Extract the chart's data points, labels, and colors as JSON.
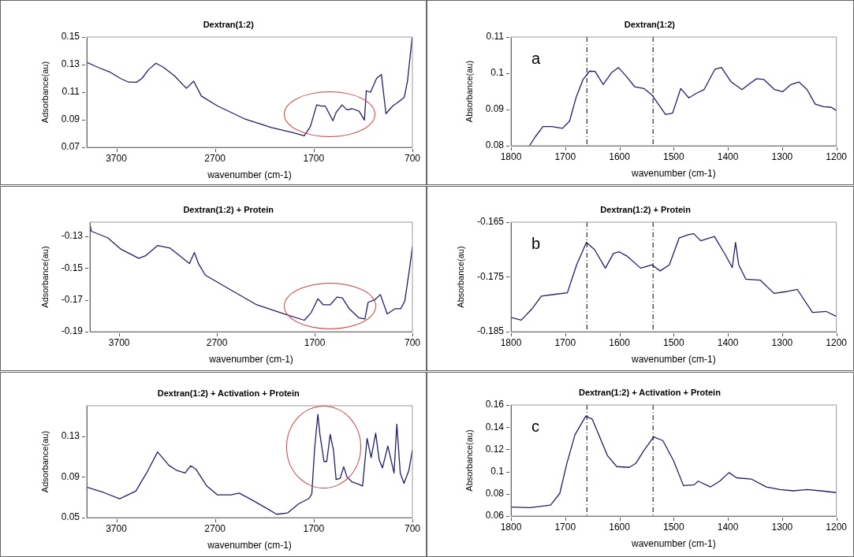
{
  "chart_data": [
    {
      "type": "line",
      "title": "Dextran(1:2)",
      "xlabel": "wavenumber (cm-1)",
      "ylabel": "Adsorbance(au)",
      "xlim": [
        4000,
        700
      ],
      "xticks": [
        3700,
        2700,
        1700,
        700
      ],
      "ylim": [
        0.07,
        0.15
      ],
      "yticks": [
        0.07,
        0.09,
        0.11,
        0.13,
        0.15
      ],
      "series": [
        {
          "color": "#1f1f6e",
          "x": [
            4000,
            3885,
            3768,
            3659,
            3577,
            3495,
            3440,
            3372,
            3298,
            3222,
            3113,
            2990,
            2916,
            2839,
            2675,
            2402,
            2129,
            1910,
            1796,
            1733,
            1670,
            1623,
            1582,
            1506,
            1473,
            1413,
            1364,
            1309,
            1240,
            1186,
            1167,
            1124,
            1063,
            1014,
            968,
            899,
            845,
            782,
            749,
            703
          ],
          "values": [
            0.1317,
            0.128,
            0.1247,
            0.12,
            0.1173,
            0.1172,
            0.12,
            0.1265,
            0.131,
            0.128,
            0.122,
            0.1128,
            0.118,
            0.1072,
            0.1,
            0.0907,
            0.0843,
            0.0806,
            0.0783,
            0.0852,
            0.1008,
            0.0999,
            0.0999,
            0.0893,
            0.0953,
            0.1008,
            0.0972,
            0.098,
            0.0962,
            0.0898,
            0.111,
            0.11,
            0.12,
            0.1228,
            0.0944,
            0.1,
            0.1027,
            0.1063,
            0.1183,
            0.1495
          ]
        }
      ]
    },
    {
      "type": "line",
      "title": "Dextran(1:2)",
      "xlabel": "wavenumber (cm-1)",
      "ylabel": "Absorbance(au)",
      "xlim": [
        1800,
        1200
      ],
      "xticks": [
        1800,
        1700,
        1600,
        1500,
        1400,
        1300,
        1200
      ],
      "ylim": [
        0.08,
        0.11
      ],
      "yticks": [
        0.08,
        0.09,
        {
          "value": 0.1,
          "label": "0.1"
        },
        0.11
      ],
      "annotations": [
        "a"
      ],
      "ref_lines": [
        {
          "axis": "x",
          "value": 1660,
          "color": "#000000",
          "line_style": "dashed"
        },
        {
          "axis": "x",
          "value": 1538,
          "color": "#000000",
          "line_style": "dashed"
        }
      ],
      "series": [
        {
          "color": "#1f1f6e",
          "x": [
            1766,
            1755,
            1741,
            1725,
            1705,
            1692,
            1680,
            1667,
            1655,
            1645,
            1630,
            1615,
            1602,
            1587,
            1572,
            1555,
            1540,
            1525,
            1515,
            1502,
            1487,
            1472,
            1459,
            1444,
            1424,
            1412,
            1394,
            1374,
            1362,
            1347,
            1334,
            1314,
            1299,
            1284,
            1269,
            1254,
            1239,
            1224,
            1209,
            1200
          ],
          "values": [
            0.08,
            0.0825,
            0.0853,
            0.0853,
            0.0848,
            0.0868,
            0.0933,
            0.0983,
            0.1006,
            0.1005,
            0.0969,
            0.1001,
            0.1016,
            0.0991,
            0.0963,
            0.0958,
            0.094,
            0.0908,
            0.0886,
            0.089,
            0.0958,
            0.0932,
            0.0944,
            0.0955,
            0.1011,
            0.1016,
            0.0976,
            0.0955,
            0.0969,
            0.0985,
            0.0983,
            0.0955,
            0.0949,
            0.0969,
            0.0976,
            0.0955,
            0.0915,
            0.0908,
            0.0906,
            0.0897
          ]
        }
      ]
    },
    {
      "type": "line",
      "title": "Dextran(1:2) + Protein",
      "xlabel": "wavenumber (cm-1)",
      "ylabel": "Adsorbance(au)",
      "xlim": [
        4000,
        700
      ],
      "xticks": [
        3700,
        2700,
        1700,
        700
      ],
      "ylim": [
        -0.19,
        -0.121
      ],
      "yticks": [
        -0.19,
        -0.17,
        -0.15,
        -0.13
      ],
      "series": [
        {
          "color": "#1f1f6e",
          "x": [
            4000,
            3986,
            3819,
            3681,
            3500,
            3431,
            3306,
            3181,
            2981,
            2931,
            2889,
            2819,
            2569,
            2292,
            2014,
            1806,
            1736,
            1667,
            1611,
            1542,
            1472,
            1417,
            1347,
            1250,
            1186,
            1153,
            1083,
            1028,
            958,
            875,
            819,
            778,
            731,
            700
          ],
          "values": [
            -0.1219,
            -0.1267,
            -0.1308,
            -0.1381,
            -0.1438,
            -0.1422,
            -0.1357,
            -0.1373,
            -0.1471,
            -0.1401,
            -0.1471,
            -0.1544,
            -0.1633,
            -0.1731,
            -0.1788,
            -0.1828,
            -0.178,
            -0.1693,
            -0.1731,
            -0.1731,
            -0.1682,
            -0.1687,
            -0.1755,
            -0.1812,
            -0.182,
            -0.1715,
            -0.1698,
            -0.1666,
            -0.1788,
            -0.1755,
            -0.1755,
            -0.1707,
            -0.1511,
            -0.1365
          ]
        }
      ]
    },
    {
      "type": "line",
      "title": "Dextran(1:2) + Protein",
      "xlabel": "wavenumber (cm-1)",
      "ylabel": "Absorbance(au)",
      "xlim": [
        1800,
        1200
      ],
      "xticks": [
        1800,
        1700,
        1600,
        1500,
        1400,
        1300,
        1200
      ],
      "ylim": [
        -0.185,
        -0.165
      ],
      "yticks": [
        -0.185,
        -0.175,
        -0.165
      ],
      "annotations": [
        "b"
      ],
      "ref_lines": [
        {
          "axis": "x",
          "value": 1660,
          "color": "#000000",
          "line_style": "dashed"
        },
        {
          "axis": "x",
          "value": 1538,
          "color": "#000000",
          "line_style": "dashed"
        }
      ],
      "series": [
        {
          "color": "#1f1f6e",
          "x": [
            1800,
            1781,
            1761,
            1744,
            1721,
            1696,
            1679,
            1661,
            1646,
            1626,
            1611,
            1601,
            1586,
            1561,
            1540,
            1525,
            1508,
            1490,
            1473,
            1463,
            1450,
            1425,
            1405,
            1392,
            1386,
            1380,
            1367,
            1340,
            1315,
            1294,
            1272,
            1244,
            1219,
            1200
          ],
          "values": [
            -0.1824,
            -0.1829,
            -0.1808,
            -0.1785,
            -0.1782,
            -0.1779,
            -0.1728,
            -0.1687,
            -0.17,
            -0.1734,
            -0.1707,
            -0.1704,
            -0.1712,
            -0.1734,
            -0.1728,
            -0.1739,
            -0.1728,
            -0.1679,
            -0.1673,
            -0.1671,
            -0.1684,
            -0.1676,
            -0.1709,
            -0.1733,
            -0.1687,
            -0.1728,
            -0.1754,
            -0.1756,
            -0.178,
            -0.1777,
            -0.1773,
            -0.1815,
            -0.1813,
            -0.1822
          ]
        }
      ]
    },
    {
      "type": "line",
      "title": "Dextran(1:2) + Activation + Protein",
      "xlabel": "wavenumber (cm-1)",
      "ylabel": "Adsorbance(au)",
      "xlim": [
        4000,
        700
      ],
      "xticks": [
        3700,
        2700,
        1700,
        700
      ],
      "ylim": [
        0.05,
        0.16
      ],
      "yticks": [
        0.05,
        0.09,
        0.13
      ],
      "series": [
        {
          "color": "#1f1f6e",
          "x": [
            4000,
            3831,
            3667,
            3503,
            3394,
            3282,
            3168,
            3086,
            3003,
            2948,
            2893,
            2784,
            2675,
            2538,
            2456,
            2347,
            2210,
            2074,
            1964,
            1855,
            1746,
            1719,
            1691,
            1658,
            1637,
            1596,
            1568,
            1533,
            1500,
            1473,
            1432,
            1396,
            1363,
            1309,
            1255,
            1205,
            1159,
            1118,
            1072,
            1036,
            1003,
            949,
            886,
            858,
            823,
            785,
            736,
            700
          ],
          "values": [
            0.0799,
            0.0748,
            0.0685,
            0.0761,
            0.0938,
            0.1146,
            0.1014,
            0.0963,
            0.0938,
            0.1009,
            0.0976,
            0.0811,
            0.0723,
            0.0723,
            0.0741,
            0.0685,
            0.0609,
            0.0533,
            0.0546,
            0.0634,
            0.069,
            0.0735,
            0.1178,
            0.1515,
            0.1318,
            0.1052,
            0.1052,
            0.1318,
            0.1166,
            0.0875,
            0.0887,
            0.1001,
            0.09,
            0.0849,
            0.0832,
            0.0811,
            0.128,
            0.109,
            0.133,
            0.1065,
            0.0989,
            0.1204,
            0.0938,
            0.1419,
            0.0938,
            0.0837,
            0.0963,
            0.1166
          ]
        }
      ]
    },
    {
      "type": "line",
      "title": "Dextran(1:2) + Activation + Protein",
      "xlabel": "wavenumber (cm-1)",
      "ylabel": "Absorbance(au)",
      "xlim": [
        1800,
        1200
      ],
      "xticks": [
        1800,
        1700,
        1600,
        1500,
        1400,
        1300,
        1200
      ],
      "ylim": [
        0.06,
        0.16
      ],
      "yticks": [
        0.06,
        0.08,
        {
          "value": 0.1,
          "label": "0.1"
        },
        0.12,
        0.14,
        0.16
      ],
      "annotations": [
        "c"
      ],
      "ref_lines": [
        {
          "axis": "x",
          "value": 1660,
          "color": "#000000",
          "line_style": "dashed"
        },
        {
          "axis": "x",
          "value": 1538,
          "color": "#000000",
          "line_style": "dashed"
        }
      ],
      "series": [
        {
          "color": "#1f1f6e",
          "x": [
            1800,
            1765,
            1727,
            1710,
            1697,
            1682,
            1662,
            1650,
            1640,
            1622,
            1605,
            1582,
            1570,
            1555,
            1537,
            1520,
            1500,
            1482,
            1462,
            1455,
            1432,
            1415,
            1398,
            1384,
            1357,
            1329,
            1304,
            1279,
            1254,
            1229,
            1200
          ],
          "values": [
            0.068,
            0.0675,
            0.0698,
            0.0804,
            0.1073,
            0.1331,
            0.15,
            0.1471,
            0.1354,
            0.1143,
            0.1045,
            0.1038,
            0.1073,
            0.119,
            0.1312,
            0.1279,
            0.1096,
            0.0874,
            0.0881,
            0.0914,
            0.0862,
            0.0914,
            0.0991,
            0.0944,
            0.0933,
            0.0862,
            0.0839,
            0.0827,
            0.0839,
            0.0827,
            0.0811
          ]
        }
      ]
    }
  ]
}
